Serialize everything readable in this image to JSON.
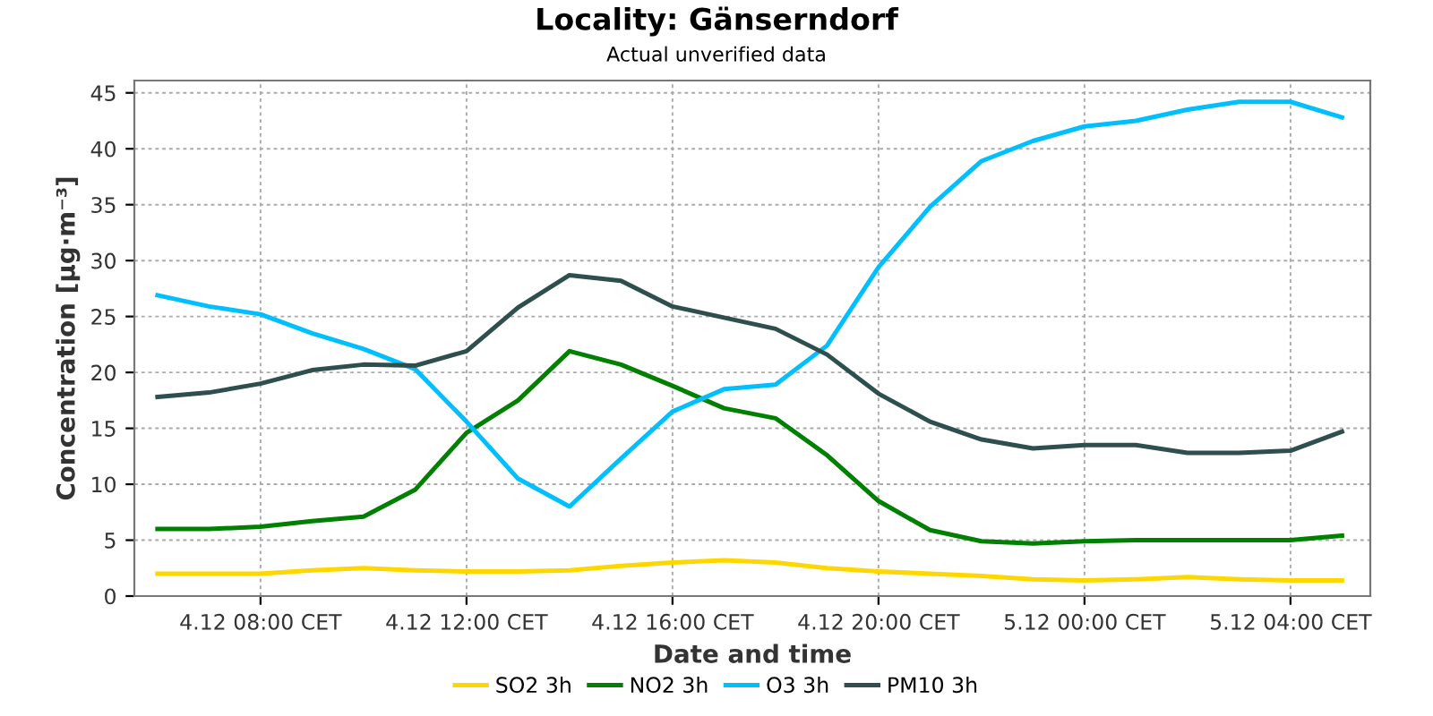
{
  "chart_data": {
    "type": "line",
    "title": "Locality: Gänserndorf",
    "subtitle": "Actual unverified data",
    "xlabel": "Date and time",
    "ylabel": "Concentration [µg·m⁻³]",
    "categories": [
      null,
      null,
      "4.12 08:00 CET",
      null,
      null,
      null,
      "4.12 12:00 CET",
      null,
      null,
      null,
      "4.12 16:00 CET",
      null,
      null,
      null,
      "4.12 20:00 CET",
      null,
      null,
      null,
      "5.12 00:00 CET",
      null,
      null,
      null,
      "5.12 04:00 CET",
      null
    ],
    "series": [
      {
        "name": "SO2 3h",
        "color": "#ffd700",
        "values": [
          2.0,
          2.0,
          2.0,
          2.3,
          2.5,
          2.3,
          2.2,
          2.2,
          2.3,
          2.7,
          3.0,
          3.2,
          3.0,
          2.5,
          2.2,
          2.0,
          1.8,
          1.5,
          1.4,
          1.5,
          1.7,
          1.5,
          1.4,
          1.4
        ]
      },
      {
        "name": "NO2 3h",
        "color": "#008000",
        "values": [
          6.0,
          6.0,
          6.2,
          6.7,
          7.1,
          9.5,
          14.6,
          17.5,
          21.9,
          20.7,
          18.8,
          16.8,
          15.9,
          12.6,
          8.5,
          5.9,
          4.9,
          4.7,
          4.9,
          5.0,
          5.0,
          5.0,
          5.0,
          5.4
        ]
      },
      {
        "name": "O3 3h",
        "color": "#00bfff",
        "values": [
          26.9,
          25.9,
          25.2,
          23.5,
          22.1,
          20.3,
          15.6,
          10.5,
          8.0,
          12.3,
          16.5,
          18.5,
          18.9,
          22.4,
          29.4,
          34.8,
          38.9,
          40.7,
          42.0,
          42.5,
          43.5,
          44.2,
          44.2,
          42.8
        ]
      },
      {
        "name": "PM10 3h",
        "color": "#2f4f4f",
        "values": [
          17.8,
          18.2,
          19.0,
          20.2,
          20.7,
          20.6,
          21.9,
          25.8,
          28.7,
          28.2,
          25.9,
          24.9,
          23.9,
          21.6,
          18.1,
          15.6,
          14.0,
          13.2,
          13.5,
          13.5,
          12.8,
          12.8,
          13.0,
          14.7
        ]
      }
    ],
    "ylim": [
      0,
      46.1
    ],
    "yticks": [
      0,
      5,
      10,
      15,
      20,
      25,
      30,
      35,
      40,
      45
    ],
    "grid": true,
    "legend": "bottom",
    "marker": "none",
    "line_style": "solid"
  }
}
